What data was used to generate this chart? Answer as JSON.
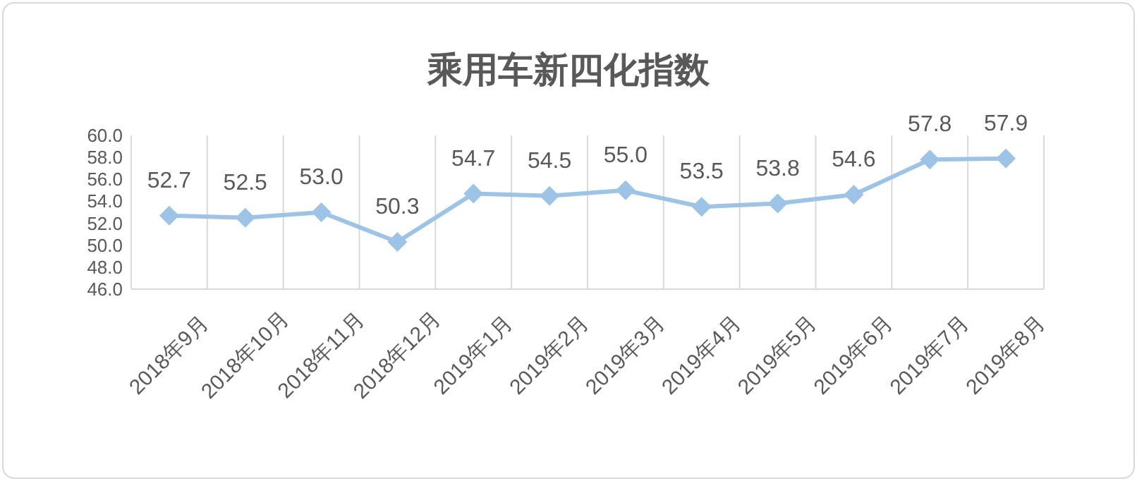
{
  "chart_data": {
    "type": "line",
    "title": "乘用车新四化指数",
    "categories": [
      "2018年9月",
      "2018年10月",
      "2018年11月",
      "2018年12月",
      "2019年1月",
      "2019年2月",
      "2019年3月",
      "2019年4月",
      "2019年5月",
      "2019年6月",
      "2019年7月",
      "2019年8月"
    ],
    "series": [
      {
        "color": "#9dc3e6",
        "values": [
          52.7,
          52.5,
          53.0,
          50.3,
          54.7,
          54.5,
          55.0,
          53.5,
          53.8,
          54.6,
          57.8,
          57.9
        ],
        "value_labels": [
          "52.7",
          "52.5",
          "53.0",
          "50.3",
          "54.7",
          "54.5",
          "55.0",
          "53.5",
          "53.8",
          "54.6",
          "57.8",
          "57.9"
        ]
      }
    ],
    "ylim": [
      46,
      60
    ],
    "yticks": [
      {
        "value": 46,
        "label": "46.0"
      },
      {
        "value": 48,
        "label": "48.0"
      },
      {
        "value": 50,
        "label": "50.0"
      },
      {
        "value": 52,
        "label": "52.0"
      },
      {
        "value": 54,
        "label": "54.0"
      },
      {
        "value": 56,
        "label": "56.0"
      },
      {
        "value": 58,
        "label": "58.0"
      },
      {
        "value": 60,
        "label": "60.0"
      }
    ],
    "grid": "x",
    "marker": "diamond",
    "line_style": "solid"
  }
}
